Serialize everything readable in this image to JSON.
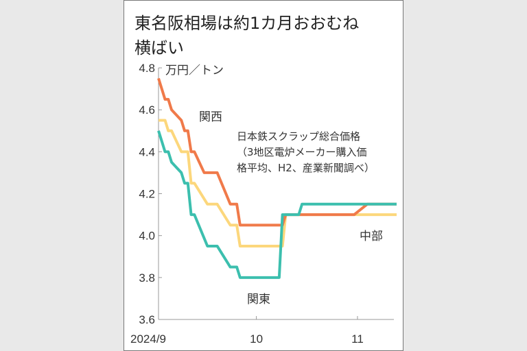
{
  "chart_data": {
    "type": "line",
    "title": "東名阪相場は約1カ月おおむね横ばい",
    "title_lines": [
      "東名阪相場は約1カ月おおむね",
      "横ばい"
    ],
    "ylabel": "万円／トン",
    "ylim": [
      3.6,
      4.8
    ],
    "yticks": [
      "3.6",
      "3.8",
      "4.0",
      "4.2",
      "4.4",
      "4.6",
      "4.8"
    ],
    "xlim": [
      "2024-09-01",
      "2024-11-13"
    ],
    "xticks": [
      {
        "date": "2024-09-01",
        "label": "2024/9"
      },
      {
        "date": "2024-10-01",
        "label": "10"
      },
      {
        "date": "2024-11-01",
        "label": "11"
      }
    ],
    "grid": false,
    "note_lines": [
      "日本鉄スクラップ総合価格",
      "（3地区電炉メーカー購入価",
      "格平均、H2、産業新聞調べ）"
    ],
    "series": [
      {
        "name": "関西",
        "color": "#f07a4a",
        "points": [
          [
            "2024-09-01",
            4.75
          ],
          [
            "2024-09-03",
            4.65
          ],
          [
            "2024-09-04",
            4.65
          ],
          [
            "2024-09-05",
            4.6
          ],
          [
            "2024-09-08",
            4.55
          ],
          [
            "2024-09-09",
            4.5
          ],
          [
            "2024-09-10",
            4.5
          ],
          [
            "2024-09-11",
            4.4
          ],
          [
            "2024-09-12",
            4.4
          ],
          [
            "2024-09-15",
            4.3
          ],
          [
            "2024-09-19",
            4.3
          ],
          [
            "2024-09-23",
            4.15
          ],
          [
            "2024-09-25",
            4.15
          ],
          [
            "2024-09-26",
            4.05
          ],
          [
            "2024-10-09",
            4.05
          ],
          [
            "2024-10-10",
            4.1
          ],
          [
            "2024-10-31",
            4.1
          ],
          [
            "2024-11-04",
            4.15
          ],
          [
            "2024-11-13",
            4.15
          ]
        ]
      },
      {
        "name": "中部",
        "color": "#fcd77c",
        "points": [
          [
            "2024-09-01",
            4.55
          ],
          [
            "2024-09-03",
            4.55
          ],
          [
            "2024-09-04",
            4.5
          ],
          [
            "2024-09-05",
            4.5
          ],
          [
            "2024-09-08",
            4.4
          ],
          [
            "2024-09-10",
            4.4
          ],
          [
            "2024-09-11",
            4.25
          ],
          [
            "2024-09-12",
            4.25
          ],
          [
            "2024-09-16",
            4.15
          ],
          [
            "2024-09-19",
            4.15
          ],
          [
            "2024-09-23",
            4.05
          ],
          [
            "2024-09-25",
            4.05
          ],
          [
            "2024-09-26",
            3.95
          ],
          [
            "2024-10-09",
            3.95
          ],
          [
            "2024-10-10",
            4.1
          ],
          [
            "2024-11-13",
            4.1
          ]
        ]
      },
      {
        "name": "関東",
        "color": "#3cbfae",
        "points": [
          [
            "2024-09-01",
            4.5
          ],
          [
            "2024-09-03",
            4.4
          ],
          [
            "2024-09-04",
            4.4
          ],
          [
            "2024-09-05",
            4.35
          ],
          [
            "2024-09-08",
            4.3
          ],
          [
            "2024-09-09",
            4.25
          ],
          [
            "2024-09-10",
            4.25
          ],
          [
            "2024-09-11",
            4.1
          ],
          [
            "2024-09-12",
            4.1
          ],
          [
            "2024-09-16",
            3.95
          ],
          [
            "2024-09-19",
            3.95
          ],
          [
            "2024-09-23",
            3.85
          ],
          [
            "2024-09-25",
            3.85
          ],
          [
            "2024-09-26",
            3.8
          ],
          [
            "2024-10-08",
            3.8
          ],
          [
            "2024-10-09",
            4.1
          ],
          [
            "2024-10-14",
            4.1
          ],
          [
            "2024-10-15",
            4.15
          ],
          [
            "2024-11-13",
            4.15
          ]
        ]
      }
    ]
  }
}
